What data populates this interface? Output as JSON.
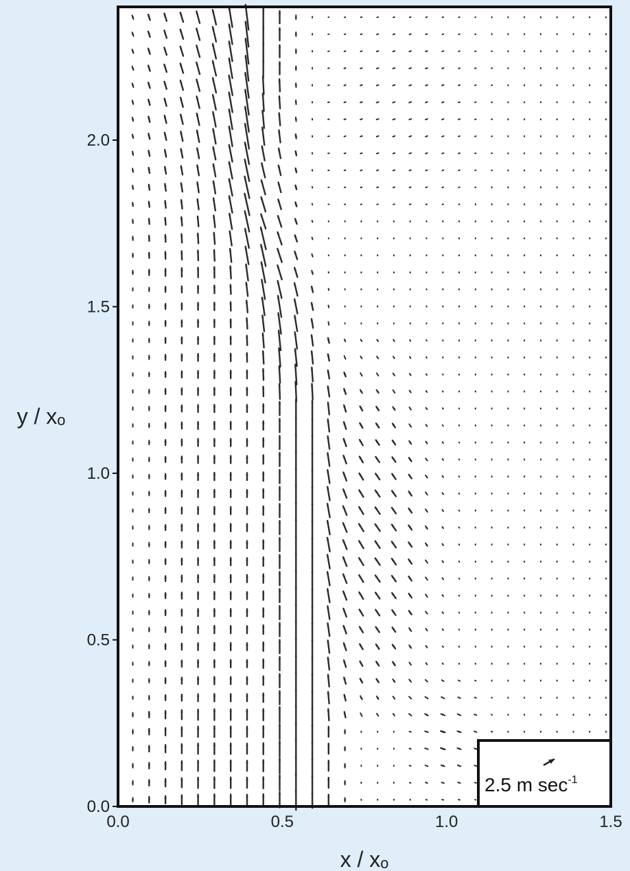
{
  "chart_data": {
    "type": "vector-field",
    "title": "",
    "xlabel": "x / xₒ",
    "ylabel": "y / xₒ",
    "xlim": [
      0.0,
      1.5
    ],
    "ylim": [
      0.0,
      2.4
    ],
    "x_ticks": [
      "0.0",
      "0.5",
      "1.0",
      "1.5"
    ],
    "y_ticks": [
      "0.0",
      "0.5",
      "1.0",
      "1.5",
      "2.0"
    ],
    "grid": false,
    "reference_vector": {
      "label": "2.5 m sec",
      "exponent": "-1",
      "magnitude": 2.5,
      "unit": "m/s"
    },
    "field_description": [
      {
        "region": "x 0.0-0.5, lower plot",
        "direction": "upward (+y)"
      },
      {
        "region": "x 0.4-0.6, upper plot",
        "direction": "upward, tilted toward -x"
      },
      {
        "region": "x 0.5-0.65, y 0.0-1.5",
        "direction": "strong upward jet"
      },
      {
        "region": "x 0.65-1.0, y 0.3-1.3",
        "direction": "upward, curving toward -x"
      },
      {
        "region": "x 1.0-1.5",
        "direction": "weak, nearly zero"
      }
    ],
    "colors": {
      "background": "#dfeef9",
      "plot_background": "#ffffff",
      "vectors": "#222222"
    }
  }
}
